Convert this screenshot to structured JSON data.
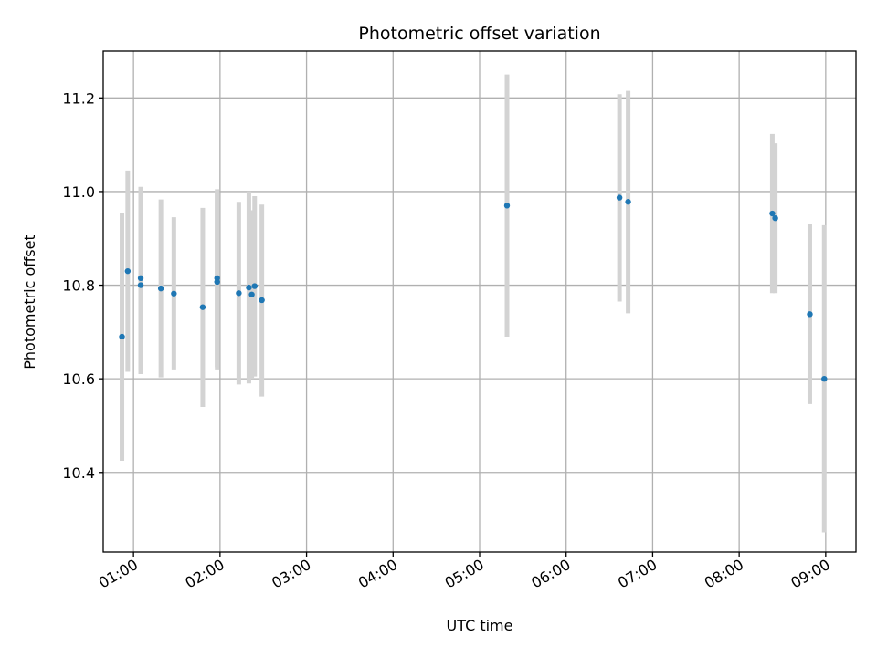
{
  "chart_data": {
    "type": "scatter",
    "title": "Photometric offset variation",
    "xlabel": "UTC time",
    "ylabel": "Photometric offset",
    "xlim": [
      "00:39",
      "09:21"
    ],
    "ylim": [
      10.23,
      11.3
    ],
    "x_ticks": [
      "01:00",
      "02:00",
      "03:00",
      "04:00",
      "05:00",
      "06:00",
      "07:00",
      "08:00",
      "09:00"
    ],
    "y_ticks": [
      10.4,
      10.6,
      10.8,
      11.0,
      11.2
    ],
    "y_tick_labels": [
      "10.4",
      "10.6",
      "10.8",
      "11.0",
      "11.2"
    ],
    "grid": true,
    "marker_color": "#1f77b4",
    "errorbar_color": "#d3d3d3",
    "points": [
      {
        "x": "00:52",
        "y": 10.69,
        "err_low": 10.425,
        "err_high": 10.955
      },
      {
        "x": "00:56",
        "y": 10.83,
        "err_low": 10.615,
        "err_high": 11.045
      },
      {
        "x": "01:05",
        "y": 10.815,
        "err_low": 10.62,
        "err_high": 11.01
      },
      {
        "x": "01:05",
        "y": 10.8,
        "err_low": 10.61,
        "err_high": 11.0
      },
      {
        "x": "01:19",
        "y": 10.793,
        "err_low": 10.603,
        "err_high": 10.983
      },
      {
        "x": "01:28",
        "y": 10.782,
        "err_low": 10.62,
        "err_high": 10.945
      },
      {
        "x": "01:48",
        "y": 10.753,
        "err_low": 10.54,
        "err_high": 10.965
      },
      {
        "x": "01:58",
        "y": 10.815,
        "err_low": 10.625,
        "err_high": 11.005
      },
      {
        "x": "01:58",
        "y": 10.807,
        "err_low": 10.62,
        "err_high": 11.0
      },
      {
        "x": "02:13",
        "y": 10.783,
        "err_low": 10.588,
        "err_high": 10.978
      },
      {
        "x": "02:20",
        "y": 10.795,
        "err_low": 10.59,
        "err_high": 11.0
      },
      {
        "x": "02:22",
        "y": 10.78,
        "err_low": 10.6,
        "err_high": 10.96
      },
      {
        "x": "02:24",
        "y": 10.798,
        "err_low": 10.605,
        "err_high": 10.99
      },
      {
        "x": "02:29",
        "y": 10.768,
        "err_low": 10.562,
        "err_high": 10.972
      },
      {
        "x": "05:19",
        "y": 10.97,
        "err_low": 10.69,
        "err_high": 11.25
      },
      {
        "x": "06:37",
        "y": 10.987,
        "err_low": 10.765,
        "err_high": 11.208
      },
      {
        "x": "06:43",
        "y": 10.978,
        "err_low": 10.74,
        "err_high": 11.215
      },
      {
        "x": "08:23",
        "y": 10.953,
        "err_low": 10.783,
        "err_high": 11.123
      },
      {
        "x": "08:25",
        "y": 10.943,
        "err_low": 10.783,
        "err_high": 11.103
      },
      {
        "x": "08:49",
        "y": 10.738,
        "err_low": 10.546,
        "err_high": 10.93
      },
      {
        "x": "08:59",
        "y": 10.6,
        "err_low": 10.272,
        "err_high": 10.928
      }
    ]
  }
}
